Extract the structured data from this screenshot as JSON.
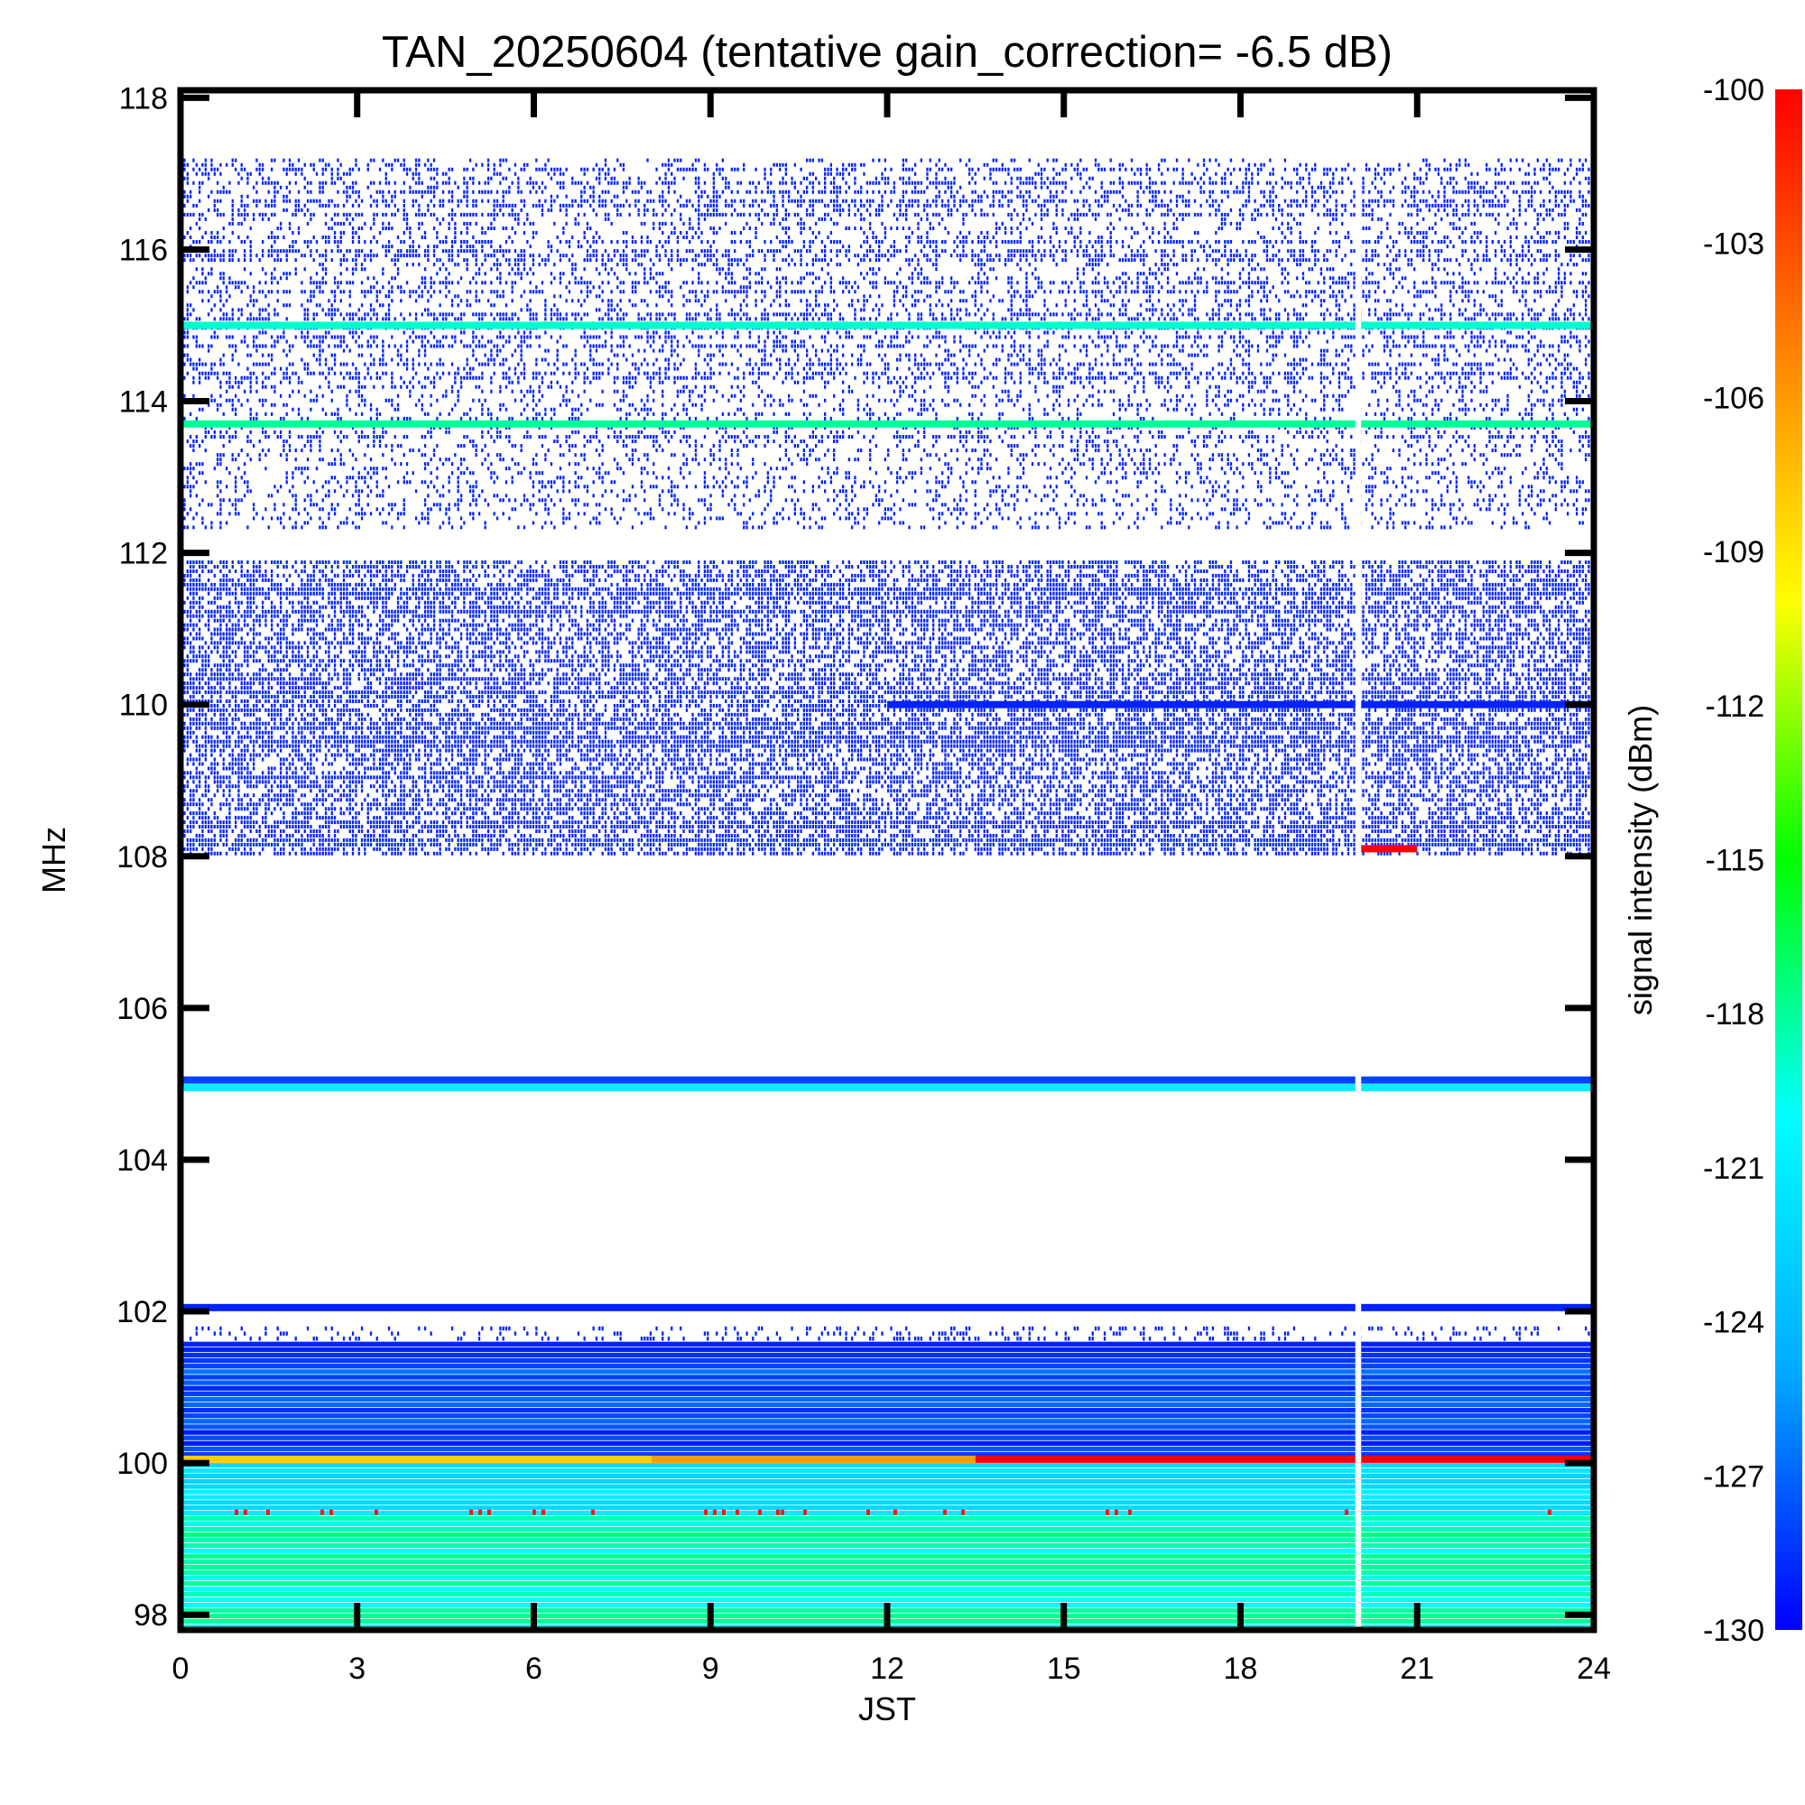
{
  "chart_data": {
    "type": "heatmap",
    "title": "TAN_20250604 (tentative gain_correction= -6.5 dB)",
    "xlabel": "JST",
    "ylabel": "MHz",
    "colorbar_label": "signal intensity (dBm)",
    "xlim": [
      0,
      24
    ],
    "ylim": [
      97.8,
      118.1
    ],
    "x_ticks": [
      "0",
      "3",
      "6",
      "9",
      "12",
      "15",
      "18",
      "21",
      "24"
    ],
    "y_ticks": [
      "98",
      "100",
      "102",
      "104",
      "106",
      "108",
      "110",
      "112",
      "114",
      "116",
      "118"
    ],
    "colorbar_range": [
      -130,
      -100
    ],
    "colorbar_ticks": [
      "-100",
      "-103",
      "-106",
      "-109",
      "-112",
      "-115",
      "-118",
      "-121",
      "-124",
      "-127",
      "-130"
    ],
    "colormap": [
      "#0000ff",
      "#00aaff",
      "#00ffff",
      "#00ff00",
      "#ffff00",
      "#ff8000",
      "#ff0000"
    ],
    "data_gap_jst": [
      19.95,
      20.05
    ],
    "bands": [
      {
        "freq_min": 97.8,
        "freq_max": 99.3,
        "level_dbm": -119,
        "pattern": "continuous"
      },
      {
        "freq_min": 99.3,
        "freq_max": 100.0,
        "level_dbm": -122,
        "pattern": "continuous"
      },
      {
        "freq_min": 100.0,
        "freq_max": 101.6,
        "level_dbm": -128,
        "pattern": "continuous"
      },
      {
        "freq_min": 101.6,
        "freq_max": 101.8,
        "level_dbm": -129,
        "pattern": "sparse"
      },
      {
        "freq_min": 108.0,
        "freq_max": 111.9,
        "level_dbm": -129,
        "pattern": "dense"
      },
      {
        "freq_min": 112.3,
        "freq_max": 117.2,
        "level_dbm": -129,
        "pattern": "sparse"
      }
    ],
    "lines": [
      {
        "freq": 115.0,
        "level_dbm": -119,
        "jst": [
          0,
          24
        ]
      },
      {
        "freq": 113.7,
        "level_dbm": -118,
        "jst": [
          0,
          24
        ]
      },
      {
        "freq": 110.0,
        "level_dbm": -129,
        "jst": [
          12,
          24
        ]
      },
      {
        "freq": 108.1,
        "level_dbm": -100,
        "jst": [
          20.0,
          21.0
        ]
      },
      {
        "freq": 105.05,
        "level_dbm": -128,
        "jst": [
          0,
          24
        ]
      },
      {
        "freq": 104.95,
        "level_dbm": -121,
        "jst": [
          0,
          24
        ]
      },
      {
        "freq": 102.05,
        "level_dbm": -129,
        "jst": [
          0,
          24
        ]
      },
      {
        "freq": 100.05,
        "level_dbm": -108,
        "jst": [
          0,
          8
        ]
      },
      {
        "freq": 100.05,
        "level_dbm": -106,
        "jst": [
          8,
          13.5
        ]
      },
      {
        "freq": 100.05,
        "level_dbm": -100,
        "jst": [
          13.5,
          24
        ]
      },
      {
        "freq": 99.35,
        "level_dbm": -101,
        "jst": [
          0,
          24
        ],
        "pattern": "intermittent"
      }
    ]
  }
}
